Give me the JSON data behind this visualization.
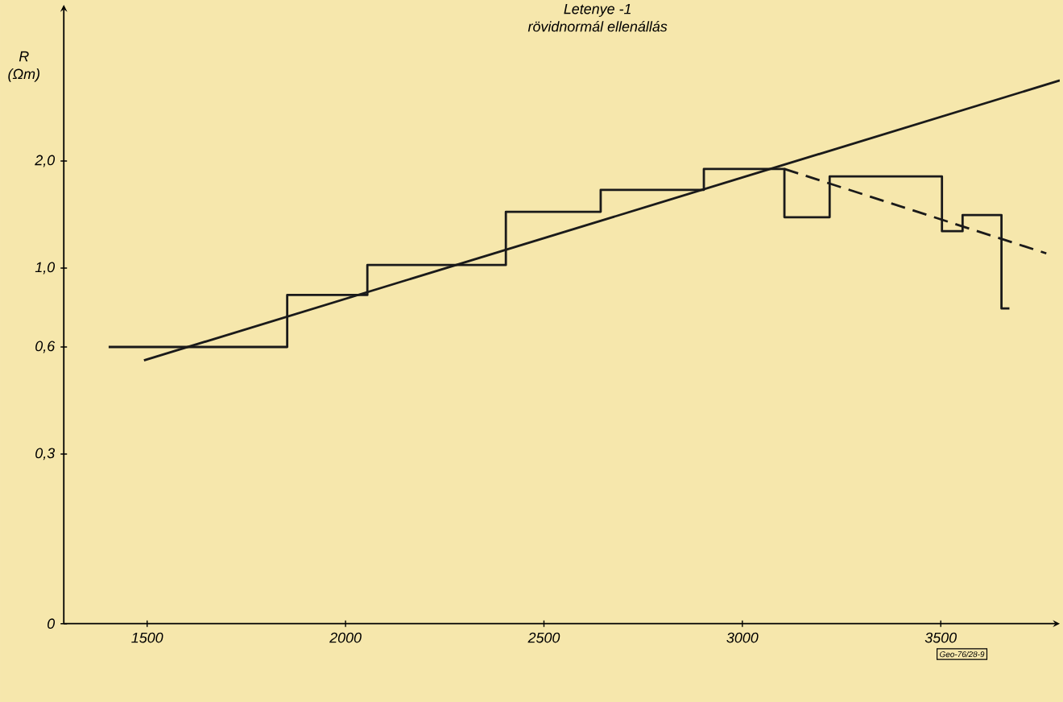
{
  "chart_data": {
    "type": "step",
    "title": "Letenye -1",
    "subtitle": "rövidnormál ellenállás",
    "ylabel": "R (Ωm)",
    "annotations": [
      "Geo-76/28-9"
    ],
    "log": "y",
    "xlim": [
      1290,
      3800
    ],
    "xticks": [
      1500,
      2000,
      2500,
      3000,
      3500
    ],
    "ylim": [
      0.1,
      5.5
    ],
    "yticks": [
      {
        "value": 0.1,
        "label": "0"
      },
      {
        "value": 0.3,
        "label": "0,3"
      },
      {
        "value": 0.6,
        "label": "0,6"
      },
      {
        "value": 1.0,
        "label": "1,0"
      },
      {
        "value": 2.0,
        "label": "2,0"
      }
    ],
    "series": [
      {
        "color": "#1a1a1a",
        "line_style": "solid",
        "x": [
          1403,
          1853,
          2055,
          2404,
          2643,
          2903,
          3106,
          3220,
          3503,
          3555,
          3653,
          3673
        ],
        "values": [
          0.6,
          0.84,
          1.02,
          1.44,
          1.66,
          1.9,
          1.39,
          1.81,
          1.27,
          1.41,
          0.77,
          0.77
        ]
      },
      {
        "type": "line",
        "color": "#1a1a1a",
        "line_style": "solid",
        "x": [
          1492,
          3800
        ],
        "values": [
          0.55,
          3.37
        ]
      },
      {
        "type": "line",
        "color": "#1a1a1a",
        "line_style": "dashed",
        "x": [
          3106,
          3766
        ],
        "values": [
          1.9,
          1.1
        ]
      }
    ]
  }
}
